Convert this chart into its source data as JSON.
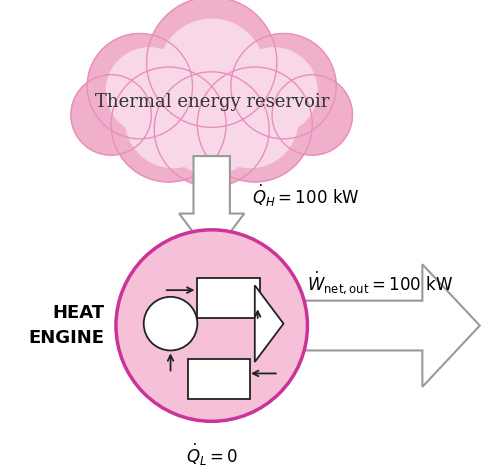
{
  "bg_color": "#ffffff",
  "cloud_color_dark": "#e890b8",
  "cloud_color_mid": "#f0b0cc",
  "cloud_color_light": "#f8d8e8",
  "circle_fill": "#f5c0d8",
  "circle_edge": "#cc3399",
  "arrow_shaft_fill": "#ffffff",
  "arrow_edge": "#999999",
  "text_color": "#000000",
  "engine_edge": "#333333",
  "title": "Thermal energy reservoir",
  "label_QH": "$\\dot{Q}_H = 100$ kW",
  "label_QL": "$\\dot{Q}_L = 0$",
  "label_engine": "HEAT\nENGINE"
}
